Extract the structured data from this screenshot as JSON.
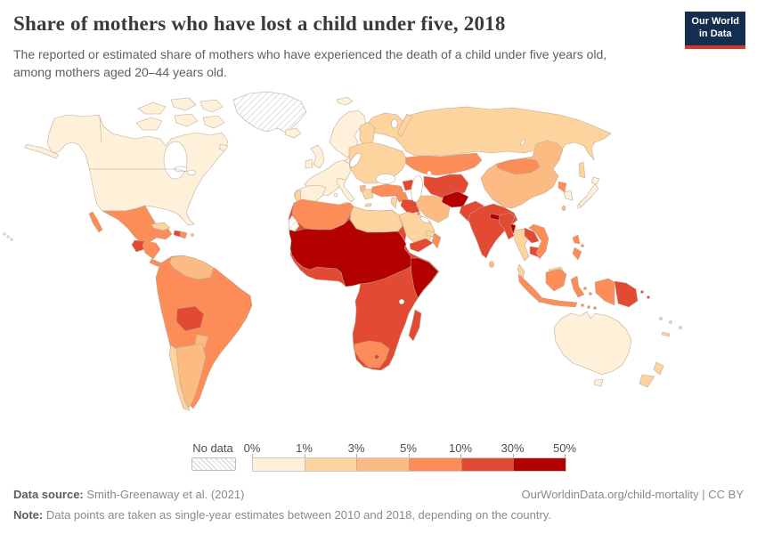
{
  "header": {
    "title": "Share of mothers who have lost a child under five, 2018",
    "subtitle": "The reported or estimated share of mothers who have experienced the death of a child under five years old, among mothers aged 20–44 years old.",
    "logo": {
      "line1": "Our World",
      "line2": "in Data"
    }
  },
  "legend": {
    "no_data_label": "No data",
    "tick_labels": [
      "0%",
      "1%",
      "3%",
      "5%",
      "10%",
      "30%",
      "50%"
    ],
    "bins": [
      {
        "range": "0–1%",
        "color": "#fef0d9"
      },
      {
        "range": "1–3%",
        "color": "#fdd49e"
      },
      {
        "range": "3–5%",
        "color": "#fdbb84"
      },
      {
        "range": "5–10%",
        "color": "#fc8d59"
      },
      {
        "range": "10–30%",
        "color": "#e34a33"
      },
      {
        "range": "30–50%",
        "color": "#b30000"
      }
    ]
  },
  "footer": {
    "source_label": "Data source:",
    "source_value": "Smith-Greenaway et al. (2021)",
    "attribution": "OurWorldinData.org/child-mortality | CC BY",
    "note_label": "Note:",
    "note_value": "Data points are taken as single-year estimates between 2010 and 2018, depending on the country."
  },
  "map": {
    "palette": {
      "bin1": "#fef0d9",
      "bin2": "#fdd49e",
      "bin3": "#fdbb84",
      "bin4": "#fc8d59",
      "bin5": "#e34a33",
      "bin6": "#b30000",
      "nodata": "hatch"
    },
    "regions": {
      "north-america": "bin1",
      "greenland": "nodata",
      "svalbard": "bin1",
      "mexico": "bin4",
      "guatemala": "bin5",
      "honduras-nicaragua": "bin4",
      "costa-rica-panama": "bin4",
      "cuba": "bin2",
      "haiti": "bin5",
      "dominican-republic": "bin4",
      "jamaica": "bin4",
      "puerto-rico": "bin3",
      "south-america": "bin4",
      "venezuela-guyanas": "bin3",
      "bolivia": "bin5",
      "paraguay": "bin3",
      "argentina": "bin3",
      "chile": "bin2",
      "iceland": "bin1",
      "united-kingdom": "bin1",
      "ireland": "bin1",
      "scandinavia": "bin1",
      "denmark": "bin1",
      "finland": "bin2",
      "western-europe": "bin1",
      "iberia": "bin1",
      "portugal": "bin2",
      "italy": "bin1",
      "eastern-europe": "bin2",
      "albania": "bin3",
      "greece": "bin2",
      "russia": "bin2",
      "kazakhstan": "bin4",
      "central-asia": "bin5",
      "caucasus": "bin5",
      "turkey": "bin4",
      "syria": "bin4",
      "israel-jordan": "bin2",
      "iraq": "bin5",
      "iran": "bin3",
      "saudi-arabia": "bin2",
      "kuwait": "bin4",
      "uae-qatar": "bin2",
      "oman": "bin4",
      "yemen": "bin5",
      "afghanistan": "bin6",
      "pakistan": "bin5",
      "india": "bin5",
      "nepal": "bin6",
      "bangladesh": "bin6",
      "bhutan": "bin4",
      "sri-lanka": "bin3",
      "china": "bin3",
      "taiwan": "bin3",
      "mongolia": "bin4",
      "north-korea": "bin4",
      "south-korea": "bin1",
      "japan": "bin1",
      "myanmar": "bin5",
      "thailand": "bin2",
      "laos": "bin5",
      "cambodia": "bin5",
      "vietnam": "bin4",
      "malaysia": "bin2",
      "philippines": "bin4",
      "indonesia": "bin4",
      "papua-new-guinea": "bin5",
      "pacific-islands": "bin2",
      "australia": "bin1",
      "new-zealand": "bin2",
      "sub-saharan-africa": "bin5",
      "north-africa-west": "bin4",
      "western-sahara": "nodata",
      "libya-egypt": "bin2",
      "sahel": "bin6",
      "somalia": "bin6",
      "south-africa": "bin4",
      "lesotho": "bin5",
      "madagascar": "bin5"
    }
  },
  "chart_data": {
    "type": "choropleth_map",
    "title": "Share of mothers who have lost a child under five, 2018",
    "subtitle": "The reported or estimated share of mothers who have experienced the death of a child under five years old, among mothers aged 20–44 years old.",
    "year": 2018,
    "unit": "% of mothers aged 20–44",
    "legend_position": "bottom",
    "bins": [
      "0–1%",
      "1–3%",
      "3–5%",
      "5–10%",
      "10–30%",
      "30–50%",
      "No data"
    ],
    "bin_colors": [
      "#fef0d9",
      "#fdd49e",
      "#fdbb84",
      "#fc8d59",
      "#e34a33",
      "#b30000",
      "hatched"
    ],
    "regions": {
      "United States": "0–1%",
      "Canada": "0–1%",
      "Greenland": "No data",
      "Mexico": "5–10%",
      "Guatemala": "10–30%",
      "Honduras & Nicaragua": "5–10%",
      "Cuba": "1–3%",
      "Haiti": "10–30%",
      "Dominican Republic": "5–10%",
      "Colombia": "5–10%",
      "Venezuela & Guyanas": "3–5%",
      "Brazil": "5–10%",
      "Peru": "5–10%",
      "Bolivia": "10–30%",
      "Paraguay": "3–5%",
      "Argentina": "3–5%",
      "Chile": "1–3%",
      "Western Europe": "0–1%",
      "Eastern Europe": "1–3%",
      "Russia": "1–3%",
      "Turkey": "5–10%",
      "Kazakhstan": "5–10%",
      "Central Asia": "10–30%",
      "Iran": "3–5%",
      "Iraq": "10–30%",
      "Saudi Arabia": "1–3%",
      "Yemen": "10–30%",
      "Oman": "5–10%",
      "Egypt & Libya": "1–3%",
      "Morocco & Algeria": "5–10%",
      "Western Sahara": "No data",
      "Sahel (Mauritania, Mali, Niger, Chad, Sudan)": "30–50%",
      "Nigeria": "30–50%",
      "West & Central Africa": "10–30%",
      "Somalia": "30–50%",
      "Ethiopia & East Africa": "10–30%",
      "Southern Africa": "10–30%",
      "South Africa": "5–10%",
      "Madagascar": "10–30%",
      "Afghanistan": "30–50%",
      "Pakistan": "10–30%",
      "India": "10–30%",
      "Nepal": "30–50%",
      "Bangladesh": "30–50%",
      "Sri Lanka": "3–5%",
      "China": "3–5%",
      "Mongolia": "5–10%",
      "Japan": "0–1%",
      "South Korea": "0–1%",
      "North Korea": "5–10%",
      "Myanmar": "10–30%",
      "Thailand": "1–3%",
      "Laos & Cambodia": "10–30%",
      "Vietnam": "5–10%",
      "Malaysia": "1–3%",
      "Philippines": "5–10%",
      "Indonesia": "5–10%",
      "Papua New Guinea": "10–30%",
      "Australia": "0–1%",
      "New Zealand": "1–3%"
    }
  }
}
